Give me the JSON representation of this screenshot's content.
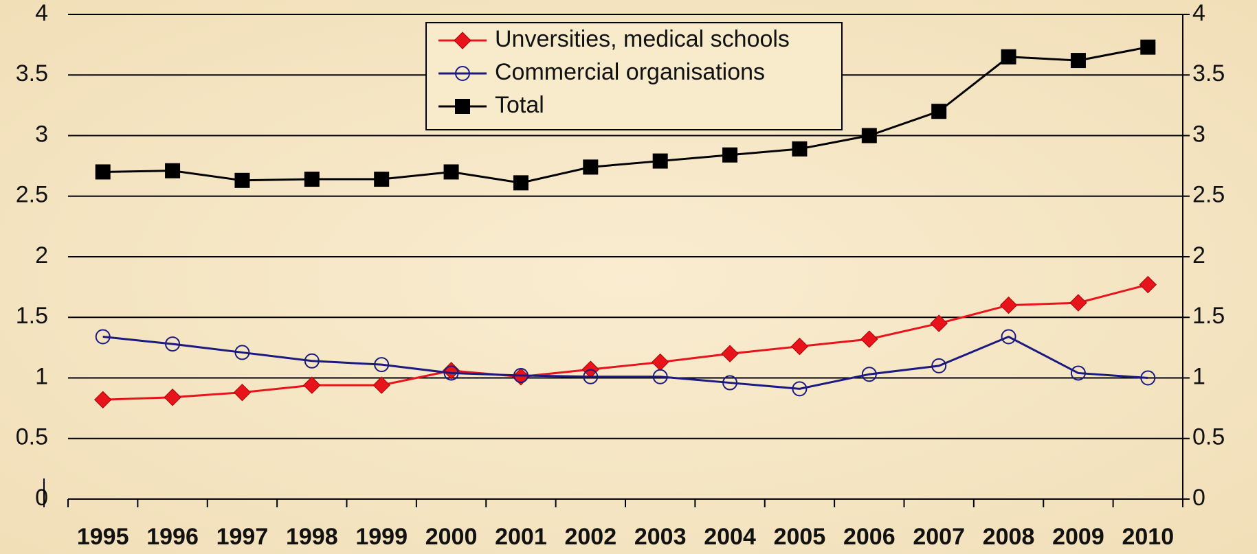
{
  "chart_data": {
    "type": "line",
    "categories": [
      "1995",
      "1996",
      "1997",
      "1998",
      "1999",
      "2000",
      "2001",
      "2002",
      "2003",
      "2004",
      "2005",
      "2006",
      "2007",
      "2008",
      "2009",
      "2010"
    ],
    "series": [
      {
        "name": "Unversities, medical schools",
        "color": "#e8141c",
        "marker": "diamond",
        "values": [
          0.82,
          0.84,
          0.88,
          0.94,
          0.94,
          1.06,
          1.01,
          1.07,
          1.13,
          1.2,
          1.26,
          1.32,
          1.45,
          1.6,
          1.62,
          1.77
        ]
      },
      {
        "name": "Commercial organisations",
        "color": "#1a1a80",
        "marker": "circle",
        "values": [
          1.34,
          1.28,
          1.21,
          1.14,
          1.11,
          1.04,
          1.02,
          1.01,
          1.01,
          0.96,
          0.91,
          1.03,
          1.1,
          1.34,
          1.04,
          1.0
        ]
      },
      {
        "name": "Total",
        "color": "#000000",
        "marker": "square",
        "values": [
          2.7,
          2.71,
          2.63,
          2.64,
          2.64,
          2.7,
          2.61,
          2.74,
          2.79,
          2.84,
          2.89,
          3.0,
          3.2,
          3.65,
          3.62,
          3.73
        ]
      }
    ],
    "ylim": [
      0,
      4
    ],
    "yticks": [
      0,
      0.5,
      1,
      1.5,
      2,
      2.5,
      3,
      3.5,
      4
    ],
    "y2lim": [
      0,
      4
    ],
    "y2ticks": [
      0,
      0.5,
      1,
      1.5,
      2,
      2.5,
      3,
      3.5,
      4
    ],
    "grid": true,
    "legend": "top"
  }
}
